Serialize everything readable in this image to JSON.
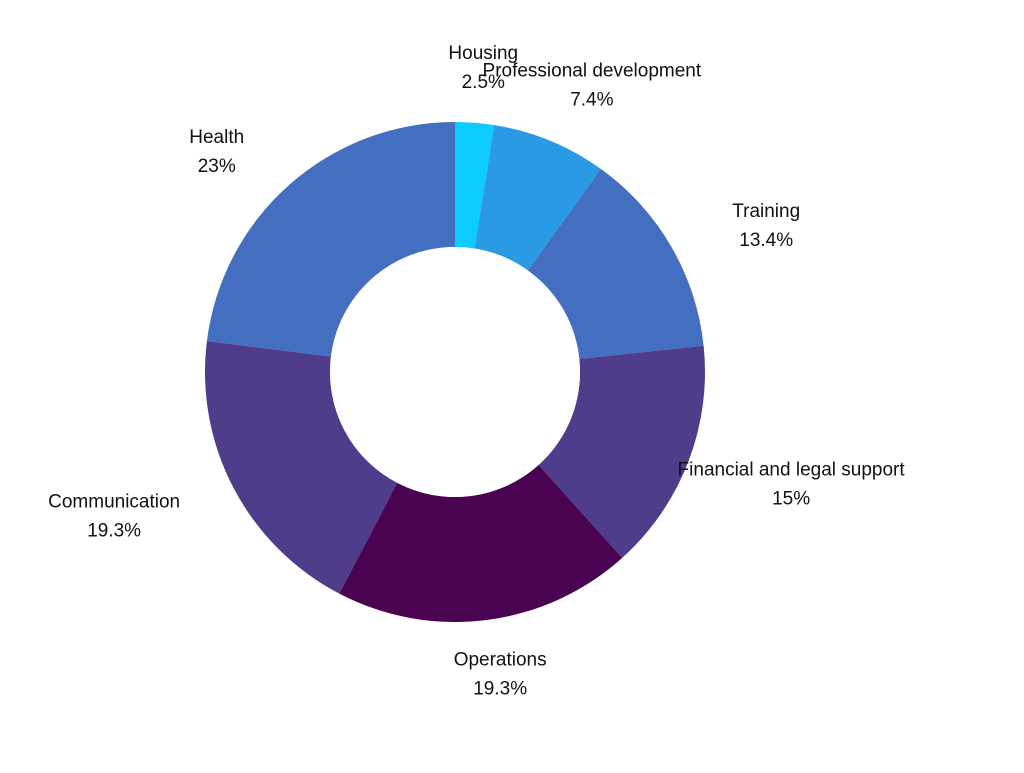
{
  "chart_data": {
    "type": "pie",
    "title": "",
    "value_suffix": "%",
    "categories": [
      "Housing",
      "Professional development",
      "Training",
      "Financial and legal support",
      "Operations",
      "Communication",
      "Health"
    ],
    "values": [
      2.5,
      7.4,
      13.4,
      15,
      19.3,
      19.3,
      23
    ],
    "value_labels": [
      "2.5%",
      "7.4%",
      "13.4%",
      "15%",
      "19.3%",
      "19.3%",
      "23%"
    ],
    "colors": [
      "#0BCBFF",
      "#2A9AE4",
      "#446EC0",
      "#4F3C8A",
      "#4A0350",
      "#4F3C8A",
      "#446EC0"
    ],
    "legend": "none",
    "donut": true
  }
}
